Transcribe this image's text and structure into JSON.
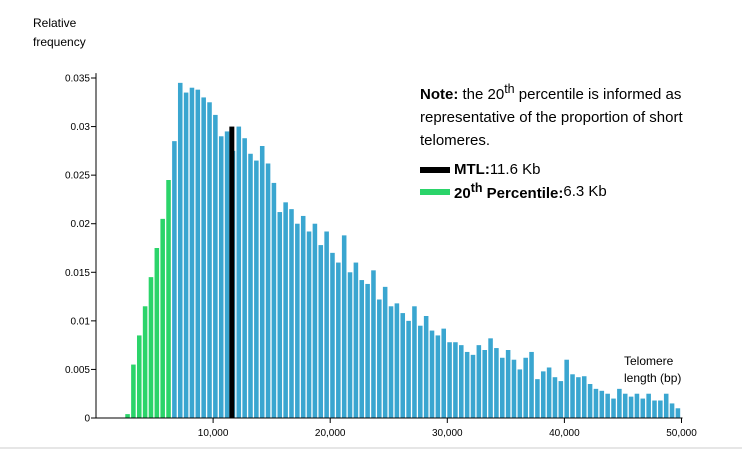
{
  "y_axis_label": [
    "Relative",
    "frequency"
  ],
  "x_axis_label": [
    "Telomere",
    "length (bp)"
  ],
  "note": {
    "prefix": "Note:",
    "text_before_sup": " the 20",
    "sup": "th",
    "text_after_sup": " percentile is informed as representative of the proportion of short telomeres."
  },
  "legend": [
    {
      "label": "MTL:",
      "value": " 11.6 Kb",
      "color": "#000000"
    },
    {
      "label_main": "20",
      "label_sup": "th",
      "label_rest": " Percentile:",
      "value": " 6.3 Kb",
      "color": "#2bd46a"
    }
  ],
  "chart_data": {
    "type": "bar",
    "title": "",
    "xlabel": "Telomere length (bp)",
    "ylabel": "Relative frequency",
    "xlim": [
      0,
      50000
    ],
    "ylim": [
      0,
      0.035
    ],
    "x_ticks": [
      10000,
      20000,
      30000,
      40000,
      50000
    ],
    "x_tick_labels": [
      "10,000",
      "20,000",
      "30,000",
      "40,000",
      "50,000"
    ],
    "y_ticks": [
      0,
      0.005,
      0.01,
      0.015,
      0.02,
      0.025,
      0.03,
      0.035
    ],
    "y_tick_labels": [
      "0",
      "0.005",
      "0.01",
      "0.015",
      "0.02",
      "0.025",
      "0.03",
      "0.035"
    ],
    "bin_start": 2500,
    "bin_width": 500,
    "colors": {
      "percentile": "#2bd46a",
      "rest": "#3aa6d0",
      "mtl": "#000000"
    },
    "percentile_20": 6300,
    "mtl": 11600,
    "mtl_line_height": 0.03,
    "values": [
      0.0004,
      0.0055,
      0.0085,
      0.0115,
      0.0145,
      0.0175,
      0.0205,
      0.0245,
      0.0285,
      0.0345,
      0.0335,
      0.034,
      0.0338,
      0.033,
      0.0325,
      0.0312,
      0.029,
      0.0295,
      0.0275,
      0.03,
      0.0288,
      0.0272,
      0.0265,
      0.028,
      0.0262,
      0.0242,
      0.0212,
      0.0222,
      0.0215,
      0.02,
      0.0208,
      0.0192,
      0.02,
      0.0178,
      0.0192,
      0.017,
      0.016,
      0.0188,
      0.015,
      0.016,
      0.0142,
      0.0138,
      0.0152,
      0.0122,
      0.0135,
      0.0115,
      0.0118,
      0.0108,
      0.01,
      0.0115,
      0.0095,
      0.0105,
      0.009,
      0.0085,
      0.0092,
      0.0078,
      0.0078,
      0.0075,
      0.0068,
      0.0065,
      0.0075,
      0.007,
      0.0082,
      0.0072,
      0.0062,
      0.007,
      0.006,
      0.005,
      0.0062,
      0.0068,
      0.004,
      0.0048,
      0.0052,
      0.0042,
      0.0038,
      0.006,
      0.0045,
      0.0042,
      0.0043,
      0.0035,
      0.003,
      0.0028,
      0.0025,
      0.002,
      0.003,
      0.0025,
      0.0022,
      0.0025,
      0.002,
      0.0025,
      0.0018,
      0.0018,
      0.0025,
      0.0015,
      0.001
    ]
  }
}
